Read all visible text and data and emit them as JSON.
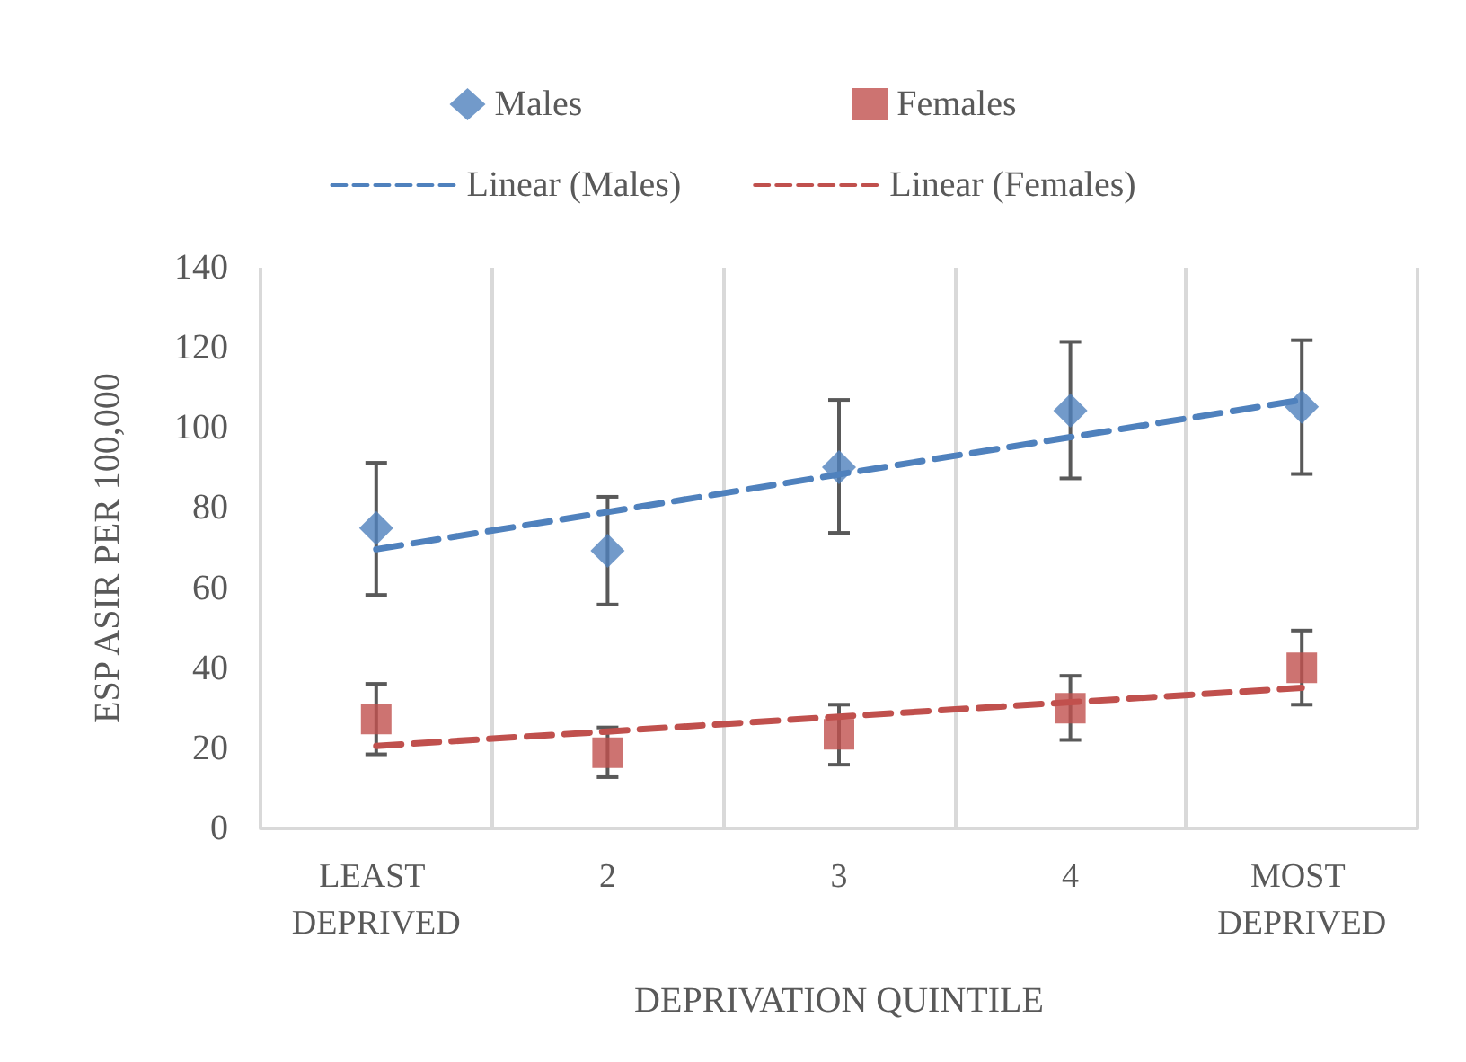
{
  "chart_data": {
    "type": "scatter",
    "categories": [
      "LEAST DEPRIVED",
      "2",
      "3",
      "4",
      "MOST DEPRIVED"
    ],
    "xlabel": "DEPRIVATION QUINTILE",
    "ylabel": "ESP ASIR PER 100,000",
    "ylim": [
      0,
      140
    ],
    "yticks": [
      0,
      20,
      40,
      60,
      80,
      100,
      120,
      140
    ],
    "grid": "x",
    "legend": "top",
    "series": [
      {
        "name": "Males",
        "marker": "diamond",
        "color": "#4f81bd",
        "values": [
          75,
          69.3,
          90.2,
          104.3,
          105.3
        ],
        "errors": [
          [
            58.3,
            91.3
          ],
          [
            55.9,
            82.8
          ],
          [
            73.8,
            107
          ],
          [
            87.4,
            121.5
          ],
          [
            88.5,
            121.9
          ]
        ]
      },
      {
        "name": "Females",
        "marker": "square",
        "color": "#c0504d",
        "values": [
          27.3,
          18.9,
          23.5,
          30,
          40.1
        ],
        "errors": [
          [
            18.5,
            36.1
          ],
          [
            12.8,
            25.2
          ],
          [
            15.9,
            30.9
          ],
          [
            22.1,
            38.1
          ],
          [
            30.9,
            49.4
          ]
        ]
      },
      {
        "name": "Linear (Males)",
        "type": "line",
        "line_style": "dashed",
        "marker": "none",
        "color": "#4f81bd",
        "values": [
          69.7,
          79,
          88.4,
          97.7,
          107
        ]
      },
      {
        "name": "Linear (Females)",
        "type": "line",
        "line_style": "dashed",
        "marker": "none",
        "color": "#c0504d",
        "values": [
          20.6,
          24.2,
          27.9,
          31.5,
          35.1
        ]
      }
    ]
  }
}
